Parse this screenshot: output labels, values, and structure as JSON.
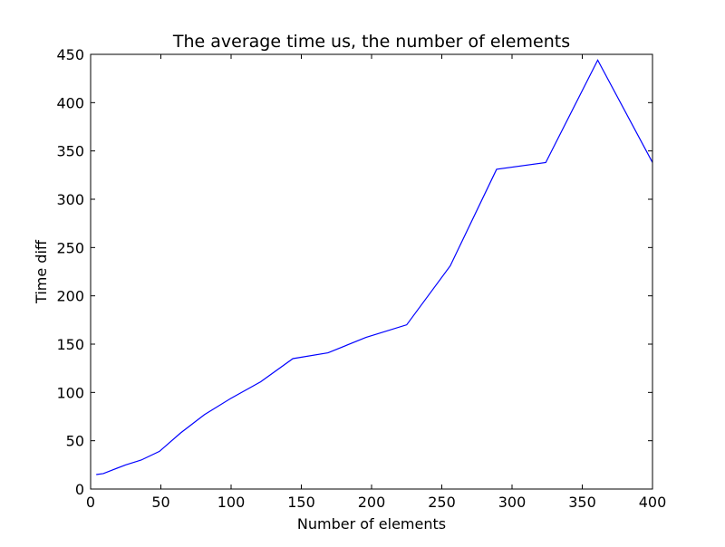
{
  "chart_data": {
    "type": "line",
    "title": "The average time us, the number of elements",
    "xlabel": "Number of elements",
    "ylabel": "Time diff",
    "xlim": [
      0,
      400
    ],
    "ylim": [
      0,
      450
    ],
    "xticks": [
      0,
      50,
      100,
      150,
      200,
      250,
      300,
      350,
      400
    ],
    "yticks": [
      0,
      50,
      100,
      150,
      200,
      250,
      300,
      350,
      400,
      450
    ],
    "grid": false,
    "legend": "none",
    "series": [
      {
        "color": "#0000ff",
        "x": [
          4,
          9,
          16,
          25,
          36,
          49,
          64,
          81,
          100,
          121,
          144,
          169,
          196,
          225,
          256,
          289,
          324,
          361,
          400
        ],
        "y": [
          15,
          16,
          20,
          25,
          30,
          39,
          58,
          77,
          94,
          111,
          135,
          141,
          157,
          170,
          231,
          331,
          338,
          444,
          338
        ]
      }
    ]
  }
}
